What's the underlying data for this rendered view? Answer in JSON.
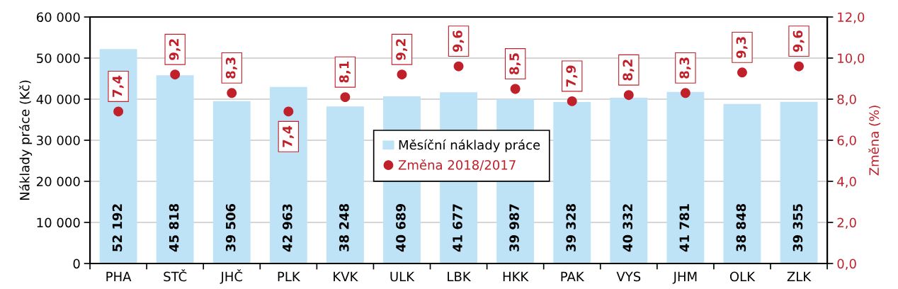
{
  "chart_data": {
    "type": "bar",
    "ylabel": "Náklady práce (Kč)",
    "y2label": "Změna (%)",
    "categories": [
      "PHA",
      "STČ",
      "JHČ",
      "PLK",
      "KVK",
      "ULK",
      "LBK",
      "HKK",
      "PAK",
      "VYS",
      "JHM",
      "OLK",
      "ZLK"
    ],
    "ylim": [
      0,
      60000
    ],
    "yticks": [
      0,
      {
        "value": 10000,
        "label": "10 000"
      },
      {
        "value": 20000,
        "label": "20 000"
      },
      {
        "value": 30000,
        "label": "30 000"
      },
      {
        "value": 40000,
        "label": "40 000"
      },
      {
        "value": 50000,
        "label": "50 000"
      },
      {
        "value": 60000,
        "label": "60 000"
      }
    ],
    "y2lim": [
      0,
      12
    ],
    "y2ticks": [
      {
        "value": 0,
        "label": "0,0"
      },
      {
        "value": 2,
        "label": "2,0"
      },
      {
        "value": 4,
        "label": "4,0"
      },
      {
        "value": 6,
        "label": "6,0"
      },
      {
        "value": 8,
        "label": "8,0"
      },
      {
        "value": 10,
        "label": "10,0"
      },
      {
        "value": 12,
        "label": "12,0"
      }
    ],
    "grid": "y",
    "legend": "center",
    "series": [
      {
        "name": "Měsíční náklady práce",
        "color": "#bee3f6",
        "values": [
          52192,
          45818,
          39506,
          42963,
          38248,
          40689,
          41677,
          39987,
          39328,
          40332,
          41781,
          38848,
          39355
        ],
        "value_labels": [
          "52 192",
          "45 818",
          "39 506",
          "42 963",
          "38 248",
          "40 689",
          "41 677",
          "39 987",
          "39 328",
          "40 332",
          "41 781",
          "38 848",
          "39 355"
        ]
      },
      {
        "name": "Změna 2018/2017",
        "type": "scatter",
        "axis": "y2",
        "marker": "circle",
        "color": "#c0202a",
        "values": [
          7.4,
          9.2,
          8.3,
          7.4,
          8.1,
          9.2,
          9.6,
          8.5,
          7.9,
          8.2,
          8.3,
          9.3,
          9.6
        ],
        "value_labels": [
          "7,4",
          "9,2",
          "8,3",
          "7,4",
          "8,1",
          "9,2",
          "9,6",
          "8,5",
          "7,9",
          "8,2",
          "8,3",
          "9,3",
          "9,6"
        ]
      }
    ]
  }
}
